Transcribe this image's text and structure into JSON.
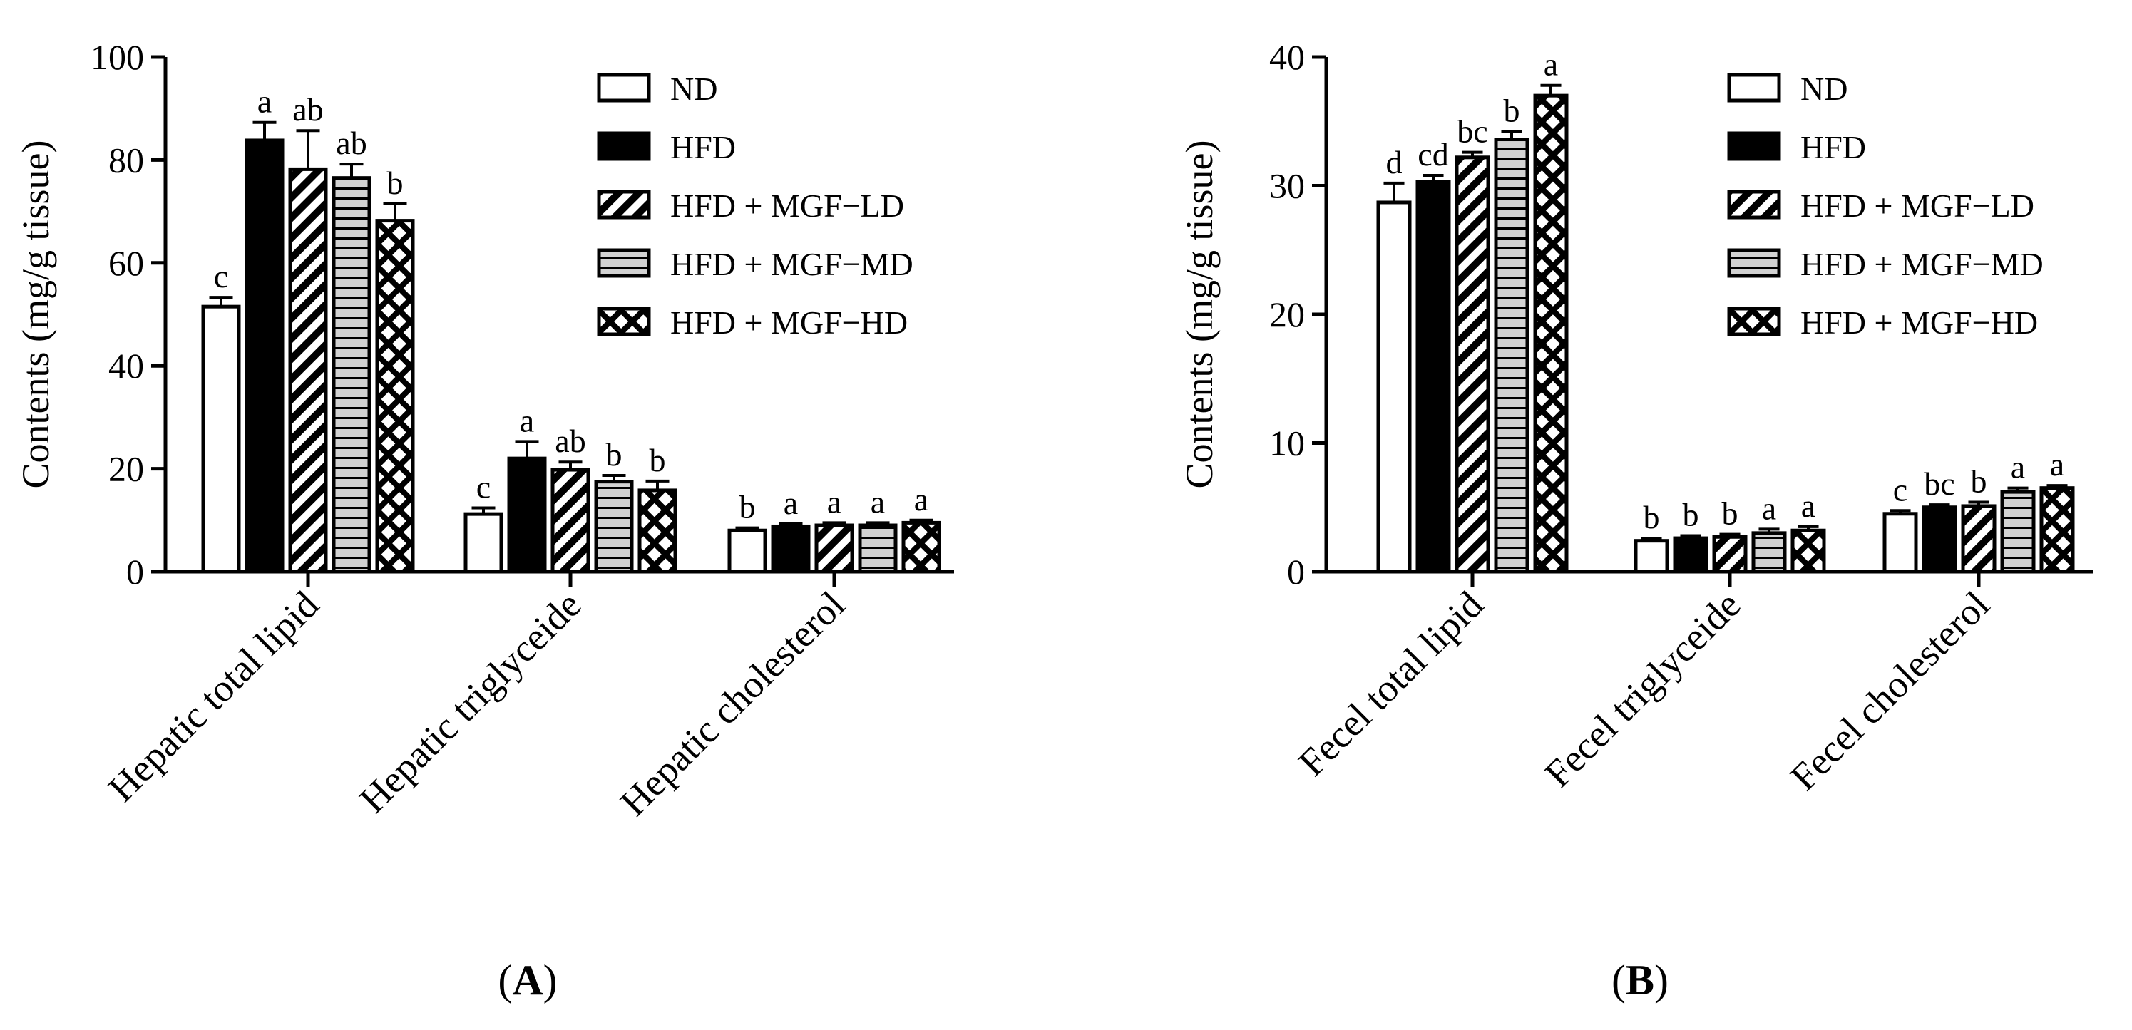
{
  "chart_data": [
    {
      "type": "bar",
      "panel_label": "A",
      "ylabel": "Contents (mg/g tissue)",
      "ylim": [
        0,
        100
      ],
      "yticks": [
        "0",
        "20",
        "40",
        "60",
        "80",
        "100"
      ],
      "categories": [
        "Hepatic total lipid",
        "Hepatic triglyceide",
        "Hepatic cholesterol"
      ],
      "legend_position": "top-right",
      "series": [
        {
          "name": "ND",
          "pattern": "open",
          "values": [
            51.5,
            11.2,
            8.0
          ],
          "errors": [
            1.8,
            1.2,
            0.5
          ],
          "letters": [
            "c",
            "c",
            "b"
          ]
        },
        {
          "name": "HFD",
          "pattern": "solid",
          "values": [
            83.8,
            22.0,
            8.8
          ],
          "errors": [
            3.5,
            3.3,
            0.5
          ],
          "letters": [
            "a",
            "a",
            "a"
          ]
        },
        {
          "name": "HFD + MGF−LD",
          "pattern": "diagonal",
          "values": [
            78.2,
            19.8,
            9.0
          ],
          "errors": [
            7.5,
            1.5,
            0.5
          ],
          "letters": [
            "ab",
            "ab",
            "a"
          ]
        },
        {
          "name": "HFD + MGF−MD",
          "pattern": "horizontal",
          "values": [
            76.5,
            17.5,
            9.0
          ],
          "errors": [
            2.7,
            1.2,
            0.5
          ],
          "letters": [
            "ab",
            "b",
            "a"
          ]
        },
        {
          "name": "HFD + MGF−HD",
          "pattern": "crosshatch",
          "values": [
            68.2,
            15.8,
            9.5
          ],
          "errors": [
            3.3,
            1.8,
            0.5
          ],
          "letters": [
            "b",
            "b",
            "a"
          ]
        }
      ]
    },
    {
      "type": "bar",
      "panel_label": "B",
      "ylabel": "Contents (mg/g tissue)",
      "ylim": [
        0,
        40
      ],
      "yticks": [
        "0",
        "10",
        "20",
        "30",
        "40"
      ],
      "categories": [
        "Fecel total lipid",
        "Fecel  triglyceide",
        "Fecel  cholesterol"
      ],
      "legend_position": "top-right",
      "series": [
        {
          "name": "ND",
          "pattern": "open",
          "values": [
            28.7,
            2.4,
            4.5
          ],
          "errors": [
            1.5,
            0.2,
            0.25
          ],
          "letters": [
            "d",
            "b",
            "c"
          ]
        },
        {
          "name": "HFD",
          "pattern": "solid",
          "values": [
            30.3,
            2.6,
            5.0
          ],
          "errors": [
            0.5,
            0.2,
            0.2
          ],
          "letters": [
            "cd",
            "b",
            "bc"
          ]
        },
        {
          "name": "HFD + MGF−LD",
          "pattern": "diagonal",
          "values": [
            32.2,
            2.7,
            5.1
          ],
          "errors": [
            0.4,
            0.2,
            0.3
          ],
          "letters": [
            "bc",
            "b",
            "b"
          ]
        },
        {
          "name": "HFD + MGF−MD",
          "pattern": "horizontal",
          "values": [
            33.6,
            3.0,
            6.2
          ],
          "errors": [
            0.6,
            0.3,
            0.3
          ],
          "letters": [
            "b",
            "a",
            "a"
          ]
        },
        {
          "name": "HFD + MGF−HD",
          "pattern": "crosshatch",
          "values": [
            37.0,
            3.2,
            6.5
          ],
          "errors": [
            0.8,
            0.3,
            0.2
          ],
          "letters": [
            "a",
            "a",
            "a"
          ]
        }
      ]
    }
  ]
}
